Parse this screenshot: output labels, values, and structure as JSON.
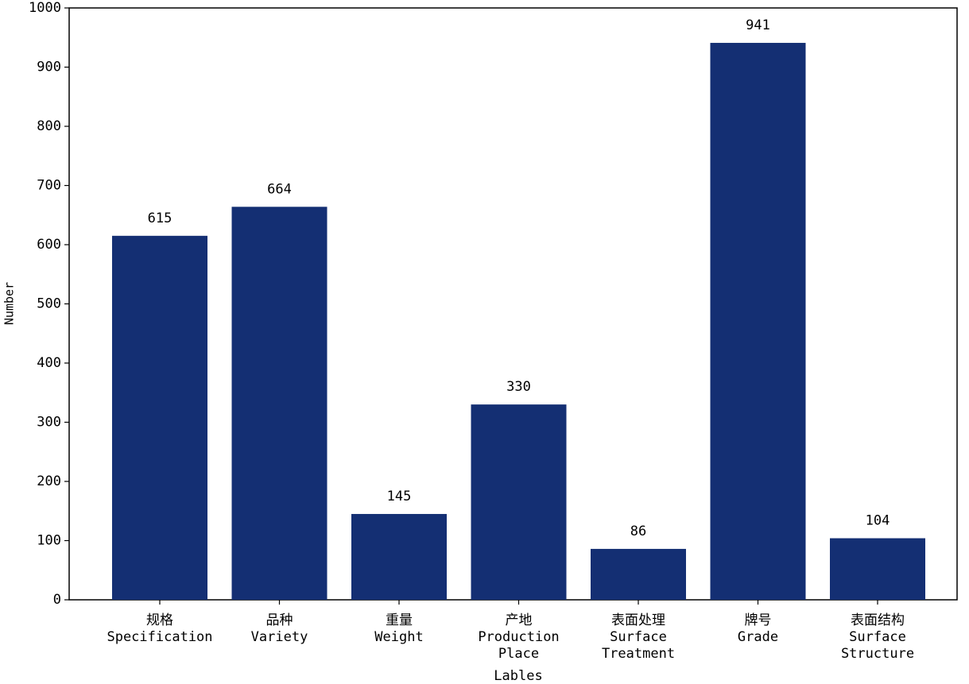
{
  "chart_data": {
    "type": "bar",
    "x_label": "Lables",
    "y_label": "Number",
    "categories": [
      "规格\nSpecification",
      "品种\nVariety",
      "重量\nWeight",
      "产地\nProduction\nPlace",
      "表面处理\nSurface\nTreatment",
      "牌号\nGrade",
      "表面结构\nSurface\nStructure"
    ],
    "values": [
      615,
      664,
      145,
      330,
      86,
      941,
      104
    ],
    "color": "#142f73",
    "ylim": [
      0,
      1000
    ],
    "yticks": [
      0,
      100,
      200,
      300,
      400,
      500,
      600,
      700,
      800,
      900,
      1000
    ],
    "grid": false,
    "show_value_labels": true
  }
}
